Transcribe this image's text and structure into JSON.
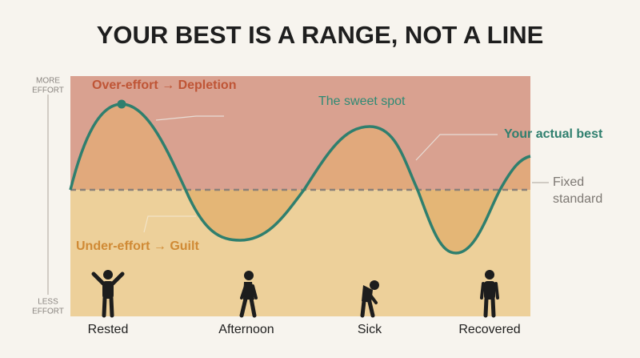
{
  "title": "YOUR BEST IS A RANGE, NOT A LINE",
  "axis": {
    "top": [
      "MORE",
      "EFFORT"
    ],
    "bottom": [
      "LESS",
      "EFFORT"
    ]
  },
  "annotations": {
    "over": "Over-effort → Depletion",
    "sweet": "The sweet spot",
    "actual": "Your actual best",
    "standard": [
      "Fixed",
      "standard"
    ],
    "under": "Under-effort → Guilt"
  },
  "stages": [
    "Rested",
    "Afternoon",
    "Sick",
    "Recovered"
  ]
}
